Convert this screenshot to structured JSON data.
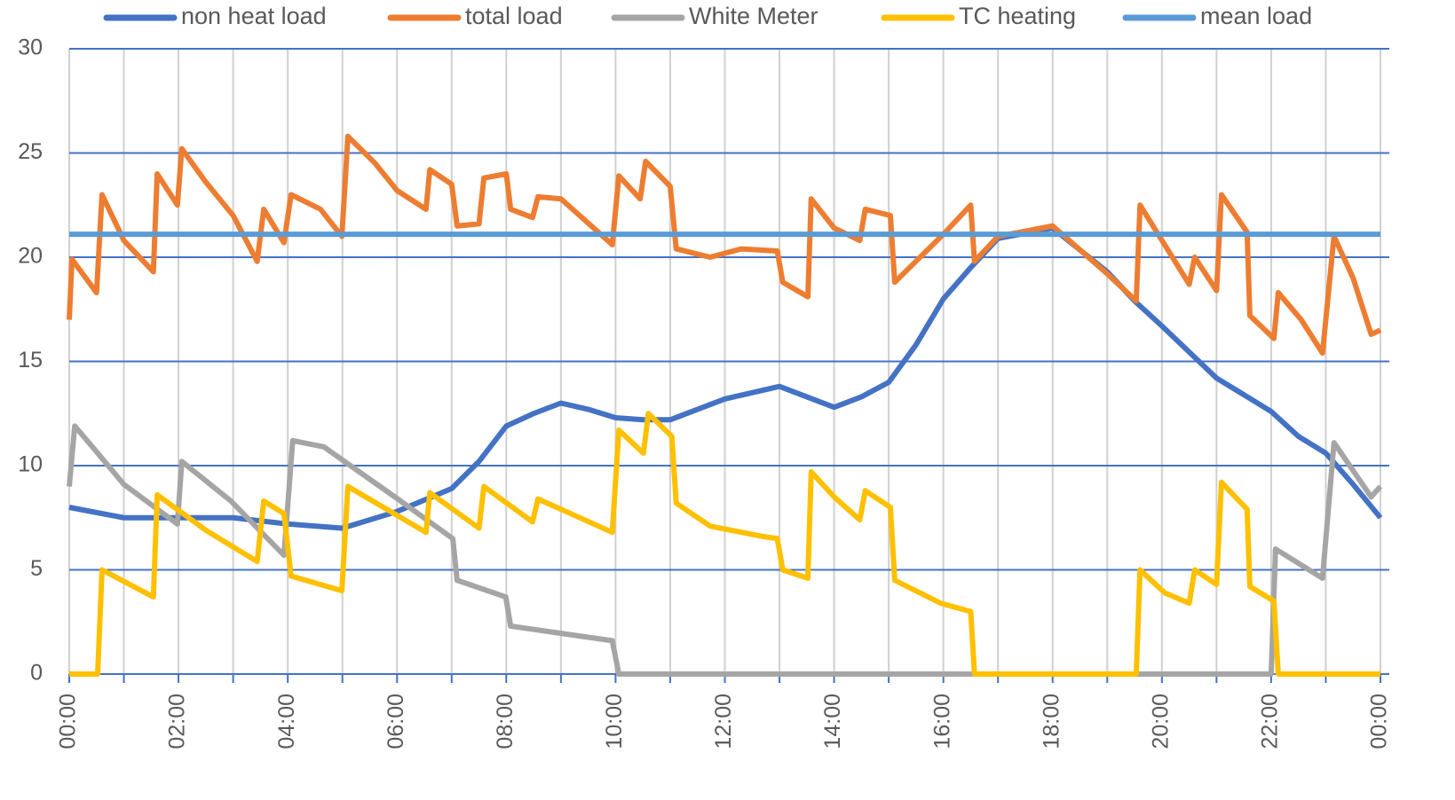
{
  "chart_data": {
    "type": "line",
    "xlim": [
      0,
      24
    ],
    "xticks": [
      {
        "value": 0,
        "label": "00:00"
      },
      {
        "value": 2,
        "label": "02:00"
      },
      {
        "value": 4,
        "label": "04:00"
      },
      {
        "value": 6,
        "label": "06:00"
      },
      {
        "value": 8,
        "label": "08:00"
      },
      {
        "value": 10,
        "label": "10:00"
      },
      {
        "value": 12,
        "label": "12:00"
      },
      {
        "value": 14,
        "label": "14:00"
      },
      {
        "value": 16,
        "label": "16:00"
      },
      {
        "value": 18,
        "label": "18:00"
      },
      {
        "value": 20,
        "label": "20:00"
      },
      {
        "value": 22,
        "label": "22:00"
      },
      {
        "value": 24,
        "label": "00:00"
      }
    ],
    "x_minor_ticks": [
      1,
      3,
      5,
      7,
      9,
      11,
      13,
      15,
      17,
      19,
      21,
      23
    ],
    "ylim": [
      0,
      30
    ],
    "yticks": [
      0,
      5,
      10,
      15,
      20,
      25,
      30
    ],
    "grid": true,
    "legend": "top",
    "series": [
      {
        "name": "non heat load",
        "color": "#4472c4",
        "x": [
          0,
          1,
          2,
          3,
          4,
          5,
          6,
          7,
          7.5,
          8,
          8.5,
          9,
          9.5,
          10,
          10.5,
          11,
          12,
          13,
          14,
          14.5,
          15,
          15.5,
          16,
          16.5,
          17,
          18,
          19,
          19.5,
          20,
          21,
          21.5,
          22,
          22.5,
          23,
          23.5,
          24
        ],
        "values": [
          8.0,
          7.5,
          7.5,
          7.5,
          7.2,
          7.0,
          7.8,
          8.9,
          10.2,
          11.9,
          12.5,
          13.0,
          12.7,
          12.3,
          12.2,
          12.2,
          13.2,
          13.8,
          12.8,
          13.3,
          14.0,
          15.8,
          18.0,
          19.5,
          20.9,
          21.4,
          19.3,
          17.9,
          16.7,
          14.2,
          13.4,
          12.6,
          11.4,
          10.6,
          9.1,
          7.5
        ]
      },
      {
        "name": "total load",
        "color": "#ed7d31",
        "x": [
          0,
          0.05,
          0.5,
          0.6,
          1.0,
          1.54,
          1.61,
          1.98,
          2.06,
          2.5,
          3.0,
          3.44,
          3.56,
          3.93,
          4.06,
          4.6,
          4.99,
          5.1,
          5.6,
          6.0,
          6.53,
          6.6,
          7.0,
          7.1,
          7.5,
          7.59,
          8.0,
          8.08,
          8.48,
          8.58,
          9.0,
          9.94,
          10.06,
          10.45,
          10.55,
          11.0,
          11.11,
          11.73,
          12.3,
          12.96,
          13.06,
          13.52,
          13.58,
          14.0,
          14.47,
          14.57,
          15.03,
          15.11,
          16.0,
          16.5,
          16.57,
          17.0,
          18.0,
          19.0,
          19.53,
          19.6,
          20.5,
          20.6,
          21.0,
          21.09,
          21.56,
          21.61,
          22.05,
          22.13,
          22.55,
          22.94,
          23.15,
          23.5,
          23.83,
          24
        ],
        "values": [
          17.0,
          19.9,
          18.3,
          23.0,
          20.8,
          19.3,
          24.0,
          22.5,
          25.2,
          23.6,
          22.0,
          19.8,
          22.3,
          20.7,
          23.0,
          22.3,
          21.0,
          25.8,
          24.5,
          23.2,
          22.3,
          24.2,
          23.5,
          21.5,
          21.6,
          23.8,
          24.0,
          22.3,
          21.9,
          22.9,
          22.8,
          20.6,
          23.9,
          22.8,
          24.6,
          23.4,
          20.4,
          20.0,
          20.4,
          20.3,
          18.8,
          18.1,
          22.8,
          21.4,
          20.8,
          22.3,
          22.0,
          18.8,
          21.1,
          22.5,
          19.8,
          21.0,
          21.5,
          19.2,
          17.9,
          22.5,
          18.7,
          20.0,
          18.4,
          23.0,
          21.2,
          17.2,
          16.1,
          18.3,
          17.0,
          15.4,
          21.0,
          19.0,
          16.3,
          16.5
        ]
      },
      {
        "name": "White Meter",
        "color": "#a5a5a5",
        "x": [
          0,
          0.1,
          0.36,
          1.0,
          1.98,
          2.06,
          2.96,
          3.93,
          4.09,
          4.66,
          5.96,
          7.02,
          7.1,
          7.99,
          8.08,
          9.94,
          10.06,
          22.0,
          22.08,
          22.94,
          23.15,
          23.83,
          24
        ],
        "values": [
          9.0,
          11.9,
          11.1,
          9.1,
          7.2,
          10.2,
          8.3,
          5.7,
          11.2,
          10.9,
          8.5,
          6.5,
          4.5,
          3.7,
          2.3,
          1.6,
          0,
          0,
          6.0,
          4.6,
          11.1,
          8.5,
          9.0
        ]
      },
      {
        "name": "TC heating",
        "color": "#ffc000",
        "x": [
          0,
          0.52,
          0.6,
          1.54,
          1.61,
          2.5,
          3.44,
          3.56,
          3.93,
          4.06,
          4.99,
          5.1,
          6.53,
          6.6,
          7.5,
          7.59,
          8.48,
          8.58,
          9.94,
          10.06,
          10.51,
          10.6,
          11.03,
          11.11,
          11.73,
          12.7,
          12.96,
          13.06,
          13.52,
          13.58,
          14.0,
          14.47,
          14.57,
          15.03,
          15.11,
          15.95,
          16.5,
          16.57,
          19.53,
          19.6,
          20.05,
          20.5,
          20.6,
          21.0,
          21.09,
          21.56,
          21.61,
          22.05,
          22.13,
          24
        ],
        "values": [
          0,
          0,
          5.0,
          3.7,
          8.6,
          6.9,
          5.4,
          8.3,
          7.7,
          4.7,
          4.0,
          9.0,
          6.8,
          8.7,
          7.0,
          9.0,
          7.3,
          8.4,
          6.8,
          11.7,
          10.6,
          12.5,
          11.4,
          8.2,
          7.1,
          6.6,
          6.5,
          5.0,
          4.6,
          9.7,
          8.5,
          7.4,
          8.8,
          8.0,
          4.5,
          3.4,
          3.0,
          0,
          0,
          5.0,
          3.9,
          3.4,
          5.0,
          4.3,
          9.2,
          7.9,
          4.2,
          3.5,
          0,
          0
        ]
      },
      {
        "name": "mean load",
        "color": "#5b9bd5",
        "x": [
          0,
          24
        ],
        "values": [
          21.1,
          21.1
        ]
      }
    ]
  }
}
